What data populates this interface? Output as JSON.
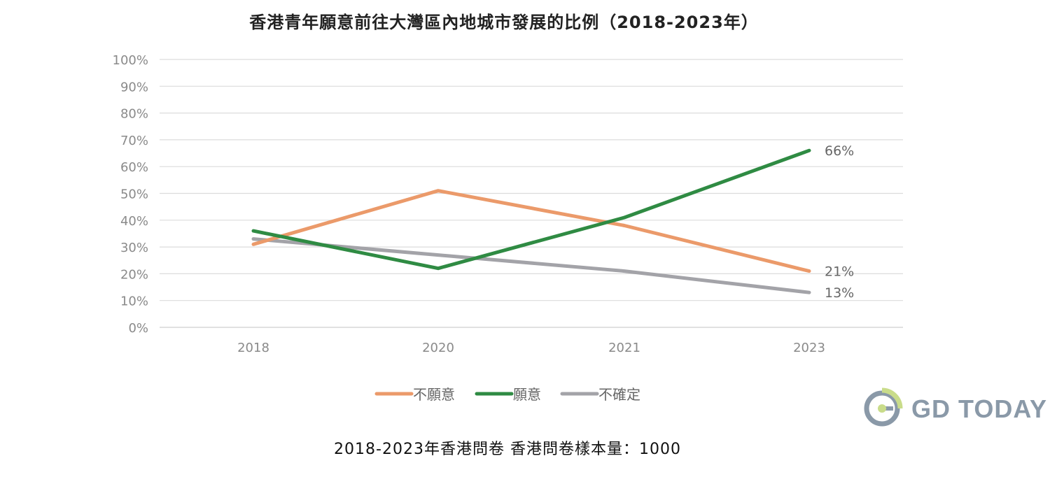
{
  "chart_data": {
    "type": "line",
    "title": "香港青年願意前往大灣區內地城市發展的比例（2018-2023年）",
    "categories": [
      "2018",
      "2020",
      "2021",
      "2023"
    ],
    "ylim": [
      0,
      100
    ],
    "yticks": [
      "0%",
      "10%",
      "20%",
      "30%",
      "40%",
      "50%",
      "60%",
      "70%",
      "80%",
      "90%",
      "100%"
    ],
    "grid": true,
    "legend_position": "bottom",
    "series": [
      {
        "name": "不願意",
        "values": [
          31,
          51,
          38,
          21
        ],
        "color": "#eb9a6a",
        "end_label": "21%"
      },
      {
        "name": "願意",
        "values": [
          36,
          22,
          41,
          66
        ],
        "color": "#2f8b43",
        "end_label": "66%"
      },
      {
        "name": "不確定",
        "values": [
          33,
          27,
          21,
          13
        ],
        "color": "#a3a3a8",
        "end_label": "13%"
      }
    ]
  },
  "footer": "2018-2023年香港問卷  香港問卷樣本量：1000",
  "logo": {
    "text": "GD TODAY",
    "icon": "gd-today-logo-icon"
  }
}
